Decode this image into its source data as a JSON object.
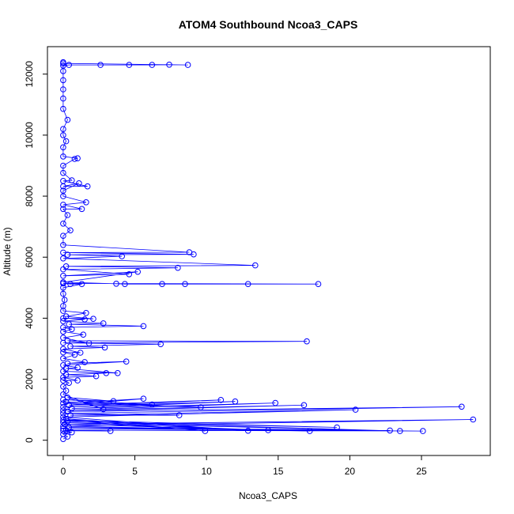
{
  "chart_data": {
    "type": "scatter",
    "title": "ATOM4 Southbound Ncoa3_CAPS",
    "xlabel": "Ncoa3_CAPS",
    "ylabel": "Altitude (m)",
    "xlim": [
      -1.1,
      29.8
    ],
    "ylim": [
      -500,
      12900
    ],
    "x_ticks": [
      0,
      5,
      10,
      15,
      20,
      25
    ],
    "y_ticks": [
      0,
      2000,
      4000,
      6000,
      8000,
      10000,
      12000
    ],
    "grid": false,
    "point_style": "open-circle",
    "colors": {
      "points": "#0000ff",
      "connector": "#0000ff",
      "dark_connector": "#000080",
      "axes": "#000000"
    },
    "series": [
      {
        "values_note": "",
        "points": [
          [
            0,
            40
          ],
          [
            0.3,
            120
          ],
          [
            0,
            200
          ],
          [
            0.6,
            260
          ],
          [
            0,
            310
          ],
          [
            3.3,
            300
          ],
          [
            0.2,
            330
          ],
          [
            25.1,
            300
          ],
          [
            0,
            380
          ],
          [
            22.8,
            320
          ],
          [
            0.4,
            420
          ],
          [
            17.2,
            300
          ],
          [
            0,
            460
          ],
          [
            28.6,
            680
          ],
          [
            0.1,
            520
          ],
          [
            14.3,
            330
          ],
          [
            0,
            580
          ],
          [
            23.5,
            300
          ],
          [
            0.3,
            620
          ],
          [
            19.1,
            420
          ],
          [
            0,
            660
          ],
          [
            9.9,
            300
          ],
          [
            0.2,
            700
          ],
          [
            12.9,
            310
          ],
          [
            0,
            760
          ],
          [
            20.4,
            1000
          ],
          [
            0.5,
            820
          ],
          [
            8.1,
            820
          ],
          [
            0,
            880
          ],
          [
            27.8,
            1100
          ],
          [
            0.3,
            940
          ],
          [
            16.8,
            1150
          ],
          [
            0,
            980
          ],
          [
            14.8,
            1220
          ],
          [
            0.6,
            1040
          ],
          [
            12.0,
            1270
          ],
          [
            0,
            1090
          ],
          [
            11.0,
            1320
          ],
          [
            0.4,
            1150
          ],
          [
            5.6,
            1360
          ],
          [
            0,
            1210
          ],
          [
            9.6,
            1080
          ],
          [
            0.2,
            1260
          ],
          [
            6.2,
            1170
          ],
          [
            0,
            1330
          ],
          [
            3.5,
            1280
          ],
          [
            0.3,
            1400
          ],
          [
            2.8,
            1020
          ],
          [
            0,
            1500
          ],
          [
            0.2,
            1620
          ],
          [
            0,
            1760
          ],
          [
            0.4,
            1880
          ],
          [
            0,
            1960
          ],
          [
            1.0,
            1960
          ],
          [
            0,
            2060
          ],
          [
            2.3,
            2100
          ],
          [
            0.2,
            2150
          ],
          [
            3.0,
            2200
          ],
          [
            0,
            2260
          ],
          [
            3.8,
            2200
          ],
          [
            0.2,
            2350
          ],
          [
            1.0,
            2380
          ],
          [
            0,
            2460
          ],
          [
            4.4,
            2580
          ],
          [
            0.3,
            2520
          ],
          [
            1.5,
            2560
          ],
          [
            0,
            2680
          ],
          [
            0.8,
            2800
          ],
          [
            0,
            2880
          ],
          [
            1.2,
            2870
          ],
          [
            0,
            2990
          ],
          [
            2.9,
            3040
          ],
          [
            0.5,
            3080
          ],
          [
            6.8,
            3150
          ],
          [
            0,
            3190
          ],
          [
            17.0,
            3240
          ],
          [
            0.3,
            3260
          ],
          [
            1.8,
            3180
          ],
          [
            0,
            3360
          ],
          [
            1.4,
            3460
          ],
          [
            0,
            3560
          ],
          [
            0.6,
            3640
          ],
          [
            0,
            3700
          ],
          [
            5.6,
            3740
          ],
          [
            0.4,
            3800
          ],
          [
            2.8,
            3830
          ],
          [
            0,
            3900
          ],
          [
            1.5,
            3960
          ],
          [
            0,
            4000
          ],
          [
            2.1,
            3980
          ],
          [
            0.2,
            4060
          ],
          [
            1.6,
            4170
          ],
          [
            0,
            4240
          ],
          [
            0,
            4400
          ],
          [
            0.1,
            4600
          ],
          [
            0,
            4800
          ],
          [
            0,
            5000
          ],
          [
            1.3,
            5120
          ],
          [
            0.5,
            5120
          ],
          [
            0,
            5140
          ],
          [
            17.8,
            5120
          ],
          [
            12.9,
            5120
          ],
          [
            8.5,
            5120
          ],
          [
            6.9,
            5120
          ],
          [
            4.3,
            5120
          ],
          [
            3.7,
            5130
          ],
          [
            0,
            5180
          ],
          [
            5.2,
            5520
          ],
          [
            0,
            5390
          ],
          [
            4.6,
            5440
          ],
          [
            0,
            5600
          ],
          [
            8.0,
            5650
          ],
          [
            0.2,
            5700
          ],
          [
            13.4,
            5730
          ],
          [
            0,
            5960
          ],
          [
            4.1,
            6030
          ],
          [
            0.3,
            6080
          ],
          [
            9.1,
            6090
          ],
          [
            0,
            6150
          ],
          [
            8.8,
            6160
          ],
          [
            0,
            6400
          ],
          [
            0,
            6700
          ],
          [
            0.5,
            6880
          ],
          [
            0,
            7100
          ],
          [
            0.3,
            7380
          ],
          [
            0,
            7580
          ],
          [
            1.3,
            7580
          ],
          [
            0,
            7720
          ],
          [
            1.6,
            7800
          ],
          [
            0,
            8000
          ],
          [
            0,
            8180
          ],
          [
            1.1,
            8420
          ],
          [
            0,
            8320
          ],
          [
            1.7,
            8320
          ],
          [
            0,
            8500
          ],
          [
            0.6,
            8520
          ],
          [
            0,
            8760
          ],
          [
            0,
            9000
          ],
          [
            0.8,
            9220
          ],
          [
            1.0,
            9240
          ],
          [
            0,
            9300
          ],
          [
            0,
            9600
          ],
          [
            0.2,
            9800
          ],
          [
            0,
            10000
          ],
          [
            0,
            10200
          ],
          [
            0.3,
            10500
          ],
          [
            0,
            10860
          ],
          [
            0,
            11200
          ],
          [
            0,
            11500
          ],
          [
            0,
            11800
          ],
          [
            0,
            12100
          ],
          [
            0,
            12280
          ],
          [
            0.4,
            12300
          ],
          [
            2.6,
            12300
          ],
          [
            4.6,
            12300
          ],
          [
            6.2,
            12300
          ],
          [
            7.4,
            12310
          ],
          [
            8.7,
            12300
          ],
          [
            0,
            12350
          ],
          [
            0,
            12390
          ]
        ]
      }
    ]
  }
}
